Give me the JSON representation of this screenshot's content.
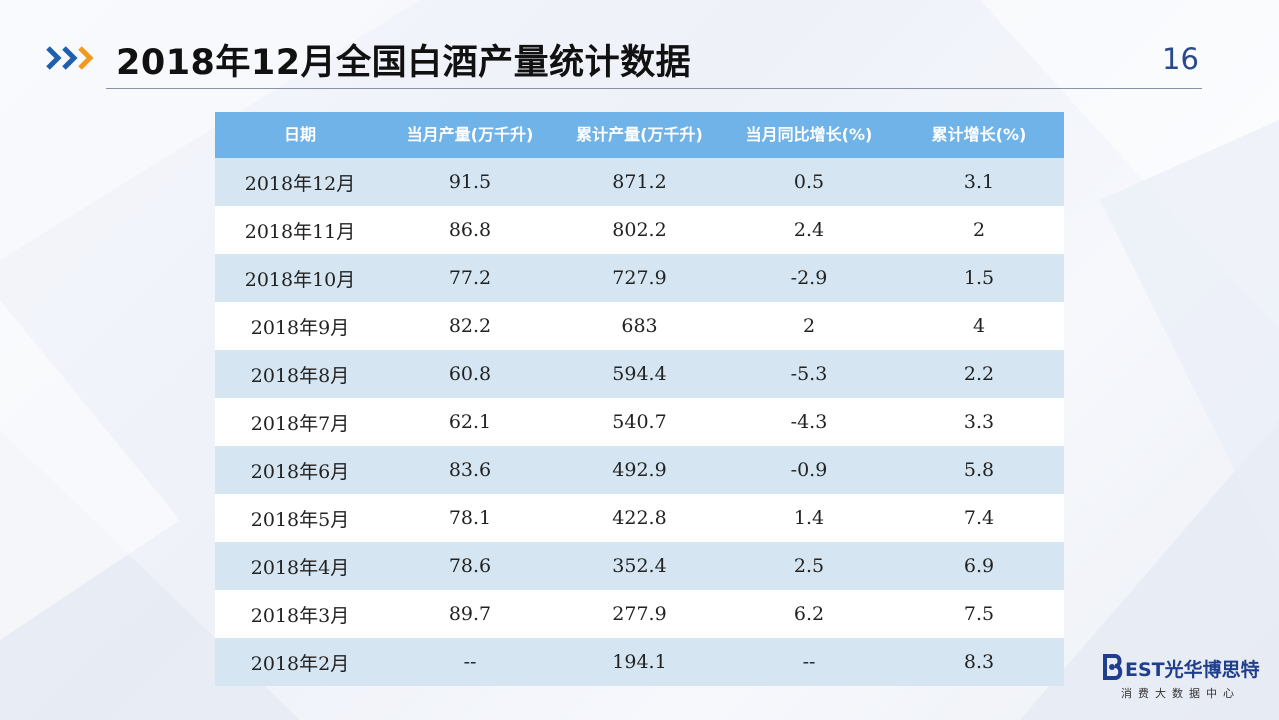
{
  "title": "2018年12月全国白酒产量统计数据",
  "page_number": "16",
  "table": {
    "headers": [
      "日期",
      "当月产量(万千升)",
      "累计产量(万千升)",
      "当月同比增长(%)",
      "累计增长(%)"
    ],
    "rows": [
      [
        "2018年12月",
        "91.5",
        "871.2",
        "0.5",
        "3.1"
      ],
      [
        "2018年11月",
        "86.8",
        "802.2",
        "2.4",
        "2"
      ],
      [
        "2018年10月",
        "77.2",
        "727.9",
        "-2.9",
        "1.5"
      ],
      [
        "2018年9月",
        "82.2",
        "683",
        "2",
        "4"
      ],
      [
        "2018年8月",
        "60.8",
        "594.4",
        "-5.3",
        "2.2"
      ],
      [
        "2018年7月",
        "62.1",
        "540.7",
        "-4.3",
        "3.3"
      ],
      [
        "2018年6月",
        "83.6",
        "492.9",
        "-0.9",
        "5.8"
      ],
      [
        "2018年5月",
        "78.1",
        "422.8",
        "1.4",
        "7.4"
      ],
      [
        "2018年4月",
        "78.6",
        "352.4",
        "2.5",
        "6.9"
      ],
      [
        "2018年3月",
        "89.7",
        "277.9",
        "6.2",
        "7.5"
      ],
      [
        "2018年2月",
        "--",
        "194.1",
        "--",
        "8.3"
      ]
    ]
  },
  "logo": {
    "brand_name": "EST光华博思特",
    "subtitle": "消费大数据中心"
  },
  "colors": {
    "header_bg": "#6fb3e8",
    "row_odd": "#d5e5f1",
    "row_even": "#ffffff",
    "arrow_blue": "#1f5fb0",
    "arrow_orange": "#f29a1f",
    "brand_blue": "#1f3f8c"
  }
}
